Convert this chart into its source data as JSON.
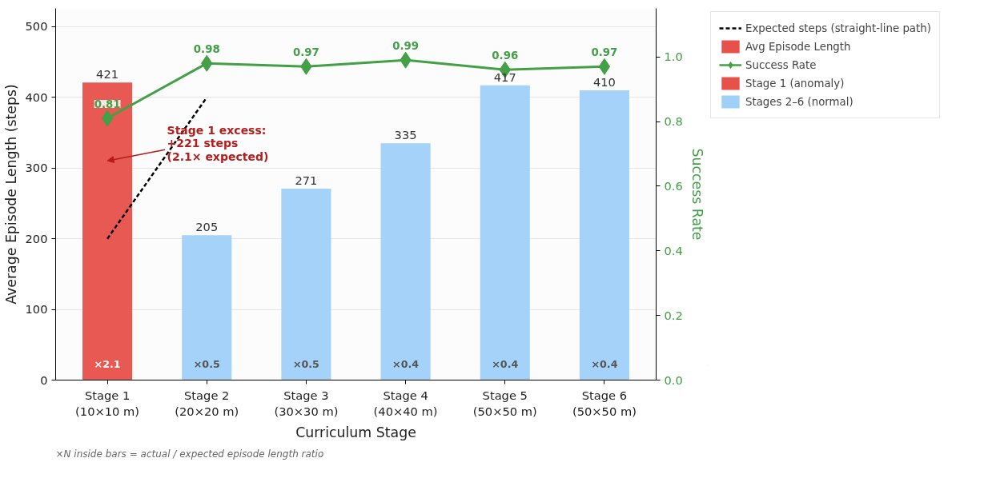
{
  "chart_data": {
    "type": "bar",
    "xlabel": "Curriculum Stage",
    "ylabel": "Average Episode Length (steps)",
    "y2label": "Success Rate",
    "categories": [
      "Stage 1\n(10×10 m)",
      "Stage 2\n(20×20 m)",
      "Stage 3\n(30×30 m)",
      "Stage 4\n(40×40 m)",
      "Stage 5\n(50×50 m)",
      "Stage 6\n(50×50 m)"
    ],
    "series": [
      {
        "name": "Expected steps (straight-line path)",
        "type": "line",
        "color": "#000000",
        "line_style": "dashed",
        "values": [
          200,
          400,
          null,
          null,
          null,
          null
        ]
      },
      {
        "name": "Avg Episode Length",
        "color": "#e8504a",
        "values": [
          null,
          null,
          null,
          null,
          null,
          null
        ]
      },
      {
        "name": "Success Rate",
        "type": "line",
        "axis": "y2",
        "color": "#43a047",
        "marker": "diamond",
        "values": [
          0.81,
          0.98,
          0.97,
          0.99,
          0.96,
          0.97
        ],
        "value_labels": [
          "0.81",
          "0.98",
          "0.97",
          "0.99",
          "0.96",
          "0.97"
        ]
      },
      {
        "name": "Stage 1 (anomaly)",
        "color": "#e8504a",
        "values": [
          421,
          null,
          null,
          null,
          null,
          null
        ],
        "value_labels": [
          "421",
          null,
          null,
          null,
          null,
          null
        ]
      },
      {
        "name": "Stages 2–6 (normal)",
        "color": "#9fd0f8",
        "values": [
          null,
          205,
          271,
          335,
          417,
          410
        ],
        "value_labels": [
          null,
          "205",
          "271",
          "335",
          "417",
          "410"
        ]
      }
    ],
    "ylim": [
      0,
      526
    ],
    "yticks": [
      0,
      100,
      200,
      300,
      400,
      500
    ],
    "y2lim": [
      0,
      1.15
    ],
    "y2ticks": [
      {
        "value": 0,
        "label": "0.0"
      },
      0.2,
      0.4,
      0.6,
      0.8,
      {
        "value": 1,
        "label": "1.0"
      }
    ],
    "grid": "y",
    "legend": "right",
    "annotations": [
      "Stage 1 excess:\n+221 steps\n(2.1× expected)",
      "×2.1",
      "×0.5",
      "×0.5",
      "×0.4",
      "×0.4",
      "×0.4",
      "×N inside bars = actual / expected episode length ratio"
    ]
  }
}
